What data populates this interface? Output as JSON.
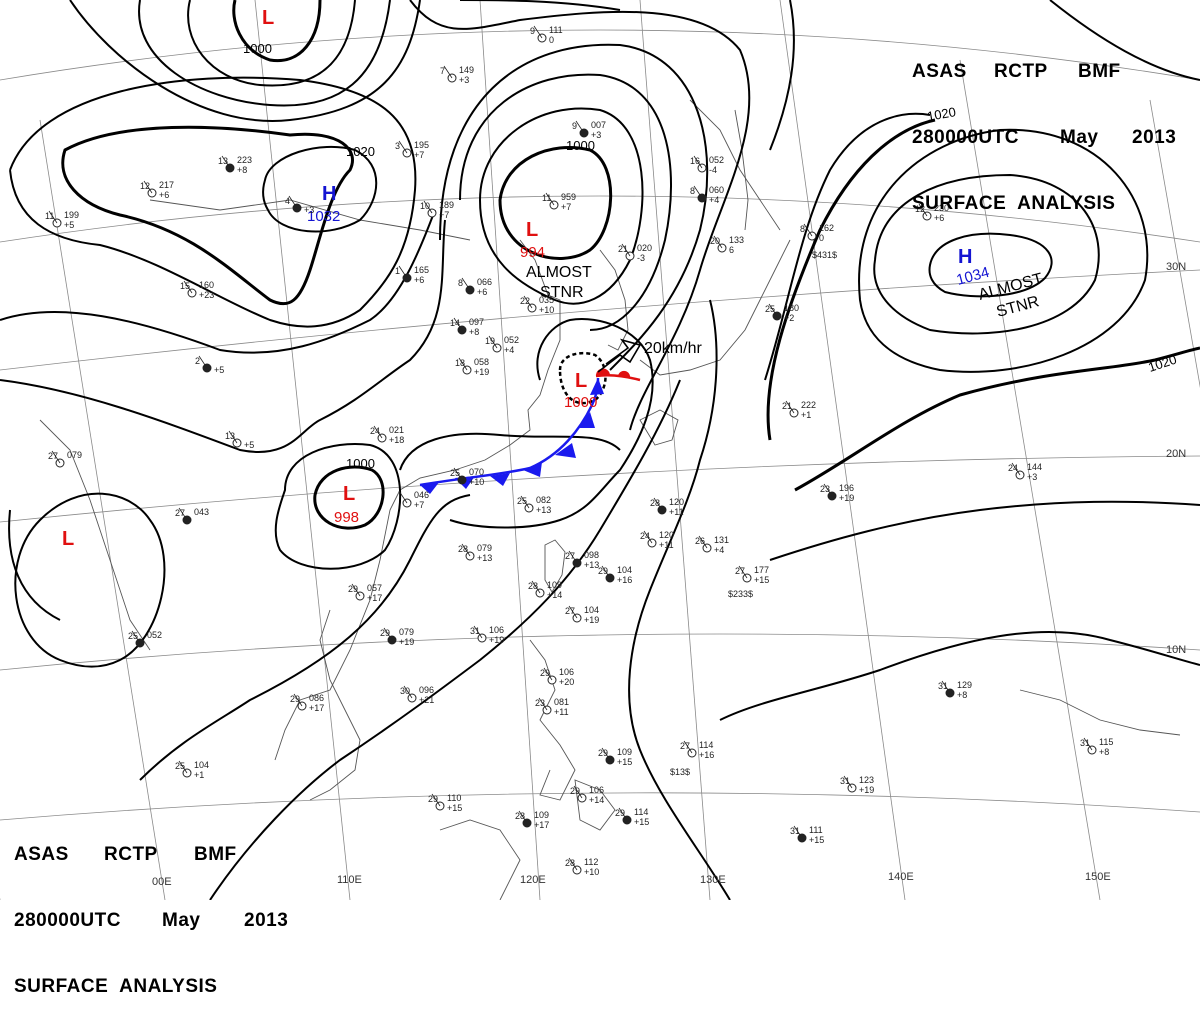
{
  "header": {
    "line1": [
      "ASAS",
      "RCTP",
      "BMF"
    ],
    "line2": [
      "280000UTC",
      "May",
      "2013"
    ],
    "line3": "SURFACE  ANALYSIS"
  },
  "lat_labels": [
    "30N",
    "20N",
    "10N"
  ],
  "lon_labels": [
    "110E",
    "120E",
    "130E",
    "140E",
    "150E"
  ],
  "lon_partial": "00E",
  "pressure_centers": [
    {
      "type": "H",
      "value": "1032"
    },
    {
      "type": "H",
      "value": "1034"
    },
    {
      "type": "L",
      "value": "994"
    },
    {
      "type": "L",
      "value": "1000"
    },
    {
      "type": "L",
      "value": "998"
    },
    {
      "type": "L",
      "value": ""
    },
    {
      "type": "L",
      "value": ""
    }
  ],
  "isobar_labels": [
    "1000",
    "1020",
    "1000",
    "1020",
    "1020",
    "1000"
  ],
  "annotations": {
    "stnr_left": [
      "ALMOST",
      "STNR"
    ],
    "stnr_right": [
      "ALMOST",
      "STNR"
    ],
    "motion": "20km/hr"
  },
  "colors": {
    "high": "#1414d2",
    "low": "#e01010",
    "front_cold": "#1a1aee",
    "front_warm": "#e01010",
    "line": "#000000"
  },
  "stations": [
    {
      "t": "13",
      "p": "223",
      "d": "+8"
    },
    {
      "t": "12",
      "p": "217",
      "d": "+6"
    },
    {
      "t": "11",
      "p": "199",
      "d": "+5"
    },
    {
      "t": "4",
      "p": "",
      "d": "+3"
    },
    {
      "t": "3",
      "p": "195",
      "d": "+7"
    },
    {
      "t": "10",
      "p": "189",
      "d": "+7"
    },
    {
      "t": "1",
      "p": "165",
      "d": "+6"
    },
    {
      "t": "7",
      "p": "149",
      "d": "+3"
    },
    {
      "t": "9",
      "p": "111",
      "d": "0"
    },
    {
      "t": "9",
      "p": "007",
      "d": "+3"
    },
    {
      "t": "11",
      "p": "959",
      "d": "+7"
    },
    {
      "t": "16",
      "p": "052",
      "d": "-4"
    },
    {
      "t": "8",
      "p": "060",
      "d": "+4"
    },
    {
      "t": "20",
      "p": "133",
      "d": "6"
    },
    {
      "t": "21",
      "p": "020",
      "d": "-3"
    },
    {
      "t": "8",
      "p": "066",
      "d": "+6"
    },
    {
      "t": "22",
      "p": "035",
      "d": "+10"
    },
    {
      "t": "19",
      "p": "052",
      "d": "+4"
    },
    {
      "t": "14",
      "p": "097",
      "d": "+8"
    },
    {
      "t": "18",
      "p": "058",
      "d": "+19"
    },
    {
      "t": "15",
      "p": "160",
      "d": "+23"
    },
    {
      "t": "2",
      "p": "",
      "d": "+5"
    },
    {
      "t": "13",
      "p": "",
      "d": "+5"
    },
    {
      "t": "24",
      "p": "021",
      "d": "+18"
    },
    {
      "t": "25",
      "p": "070",
      "d": "+10"
    },
    {
      "t": "25",
      "p": "082",
      "d": "+13"
    },
    {
      "t": "",
      "p": "046",
      "d": "+7"
    },
    {
      "t": "27",
      "p": "043",
      "d": ""
    },
    {
      "t": "27",
      "p": "079",
      "d": ""
    },
    {
      "t": "28",
      "p": "079",
      "d": "+13"
    },
    {
      "t": "27",
      "p": "098",
      "d": "+13"
    },
    {
      "t": "29",
      "p": "057",
      "d": "+17"
    },
    {
      "t": "28",
      "p": "109",
      "d": "+14"
    },
    {
      "t": "29",
      "p": "104",
      "d": "+16"
    },
    {
      "t": "27",
      "p": "104",
      "d": "+19"
    },
    {
      "t": "31",
      "p": "106",
      "d": "+19"
    },
    {
      "t": "29",
      "p": "079",
      "d": "+19"
    },
    {
      "t": "30",
      "p": "096",
      "d": "+21"
    },
    {
      "t": "29",
      "p": "086",
      "d": "+17"
    },
    {
      "t": "25",
      "p": "052",
      "d": ""
    },
    {
      "t": "25",
      "p": "104",
      "d": "+1"
    },
    {
      "t": "29",
      "p": "110",
      "d": "+15"
    },
    {
      "t": "28",
      "p": "109",
      "d": "+17"
    },
    {
      "t": "28",
      "p": "112",
      "d": "+10"
    },
    {
      "t": "29",
      "p": "106",
      "d": "+14"
    },
    {
      "t": "29",
      "p": "114",
      "d": "+15"
    },
    {
      "t": "29",
      "p": "106",
      "d": "+20"
    },
    {
      "t": "23",
      "p": "081",
      "d": "+11"
    },
    {
      "t": "29",
      "p": "109",
      "d": "+15"
    },
    {
      "t": "27",
      "p": "114",
      "d": "+16"
    },
    {
      "t": "27",
      "p": "177",
      "d": "+15"
    },
    {
      "t": "28",
      "p": "120",
      "d": "+11"
    },
    {
      "t": "26",
      "p": "131",
      "d": "+4"
    },
    {
      "t": "24",
      "p": "120",
      "d": "+11"
    },
    {
      "t": "23",
      "p": "196",
      "d": "+19"
    },
    {
      "t": "24",
      "p": "144",
      "d": "+3"
    },
    {
      "t": "21",
      "p": "222",
      "d": "+1"
    },
    {
      "t": "25",
      "p": "180",
      "d": "+2"
    },
    {
      "t": "12",
      "p": "230",
      "d": "+6"
    },
    {
      "t": "8",
      "p": "162",
      "d": "0"
    },
    {
      "t": "31",
      "p": "129",
      "d": "+8"
    },
    {
      "t": "31",
      "p": "115",
      "d": "+8"
    },
    {
      "t": "31",
      "p": "123",
      "d": "+19"
    },
    {
      "t": "31",
      "p": "111",
      "d": "+15"
    }
  ],
  "station_extras": [
    "$233$",
    "$13$",
    "$431$"
  ]
}
